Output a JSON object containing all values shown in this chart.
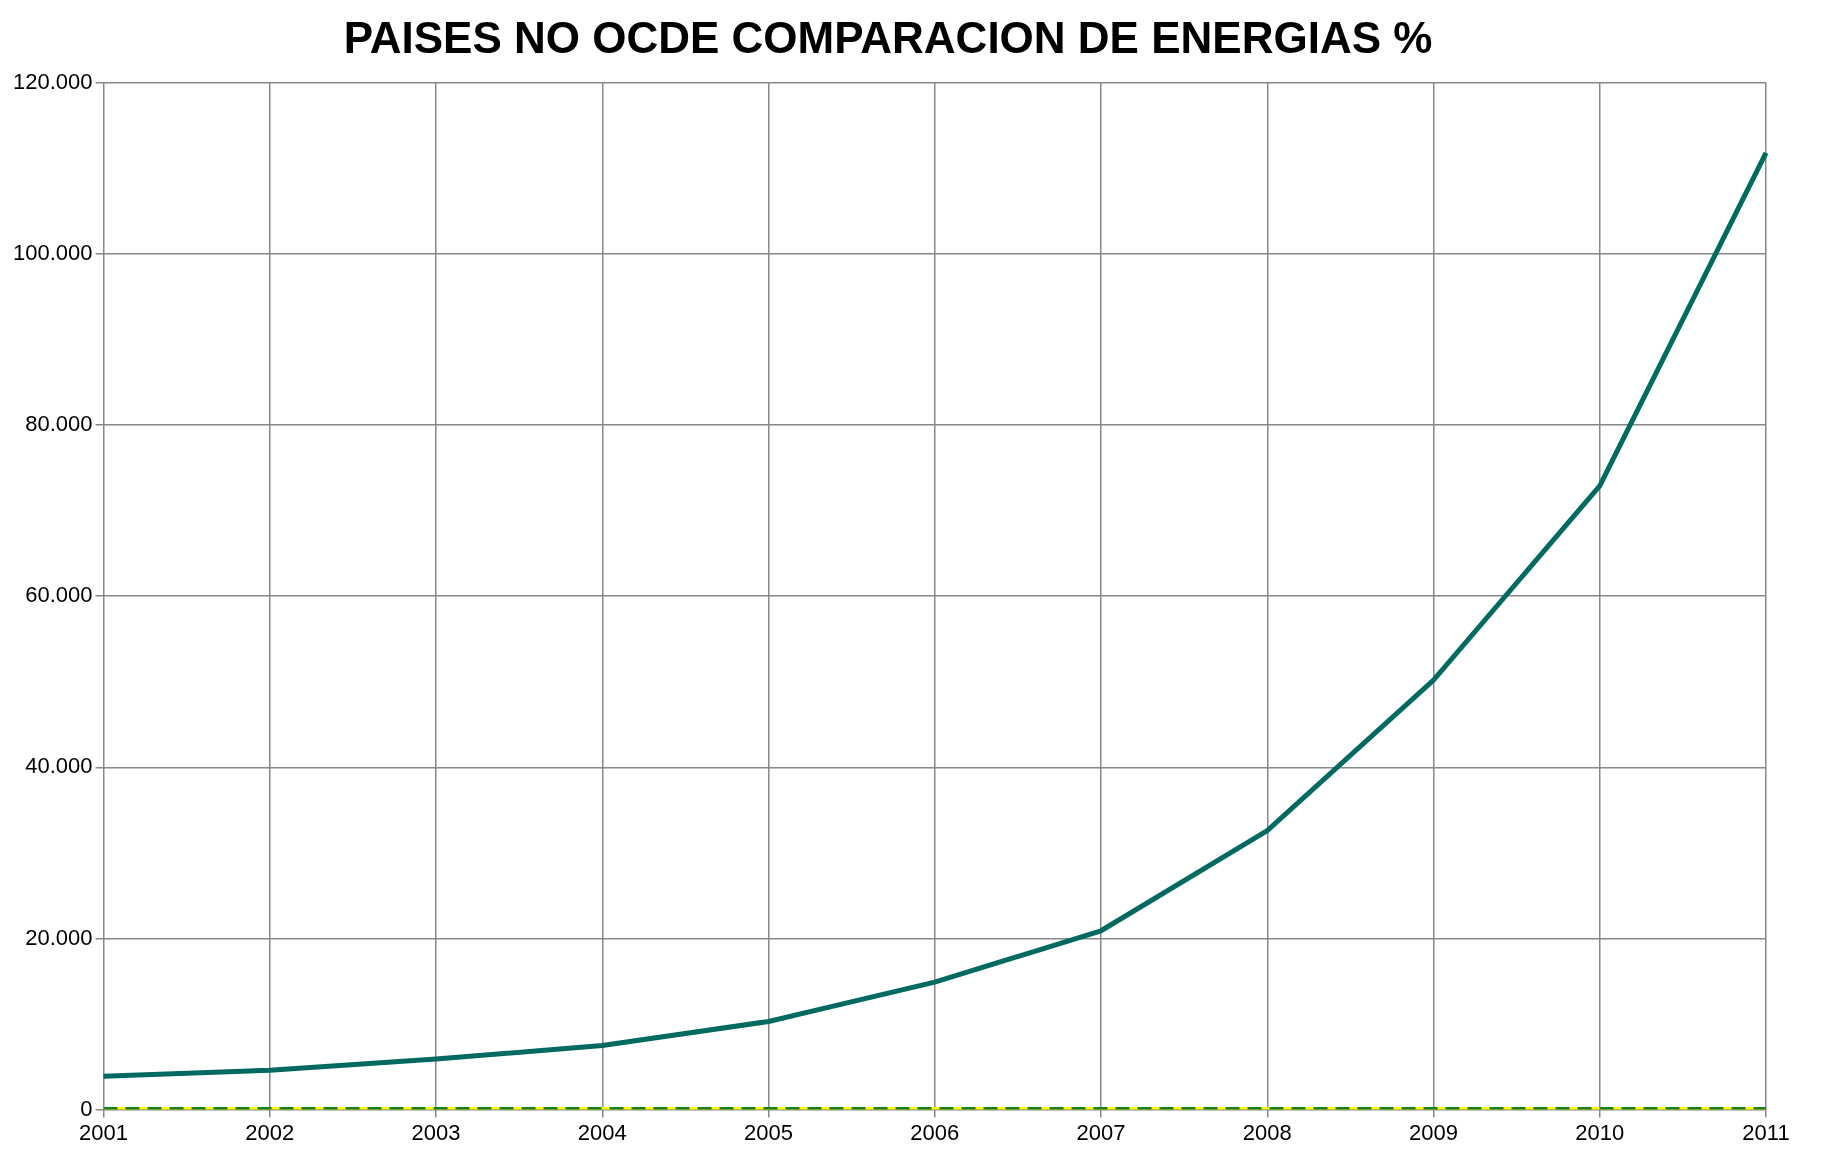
{
  "chart_data": {
    "type": "line",
    "title": "PAISES NO OCDE COMPARACION DE ENERGIAS %",
    "categories": [
      "2001",
      "2002",
      "2003",
      "2004",
      "2005",
      "2006",
      "2007",
      "2008",
      "2009",
      "2010",
      "2011"
    ],
    "series": [
      {
        "color": "#006a60",
        "line_style": "solid",
        "values": [
          3900,
          4600,
          5900,
          7500,
          10300,
          14900,
          20900,
          32600,
          50200,
          72900,
          111800
        ]
      },
      {
        "color": "#ffff00",
        "line_style": "solid",
        "values": [
          0,
          0,
          0,
          0,
          0,
          0,
          0,
          0,
          0,
          0,
          0
        ]
      },
      {
        "color": "#1a8020",
        "line_style": "dashed",
        "values": [
          0,
          0,
          0,
          0,
          0,
          0,
          0,
          0,
          0,
          0,
          0
        ]
      }
    ],
    "ylim": [
      0,
      120000
    ],
    "yticks": [
      0,
      {
        "value": 20000,
        "label": "20.000"
      },
      {
        "value": 40000,
        "label": "40.000"
      },
      {
        "value": 60000,
        "label": "60.000"
      },
      {
        "value": 80000,
        "label": "80.000"
      },
      {
        "value": 100000,
        "label": "100.000"
      },
      {
        "value": 120000,
        "label": "120.000"
      }
    ],
    "grid": true,
    "legend": false,
    "marker": "none"
  }
}
